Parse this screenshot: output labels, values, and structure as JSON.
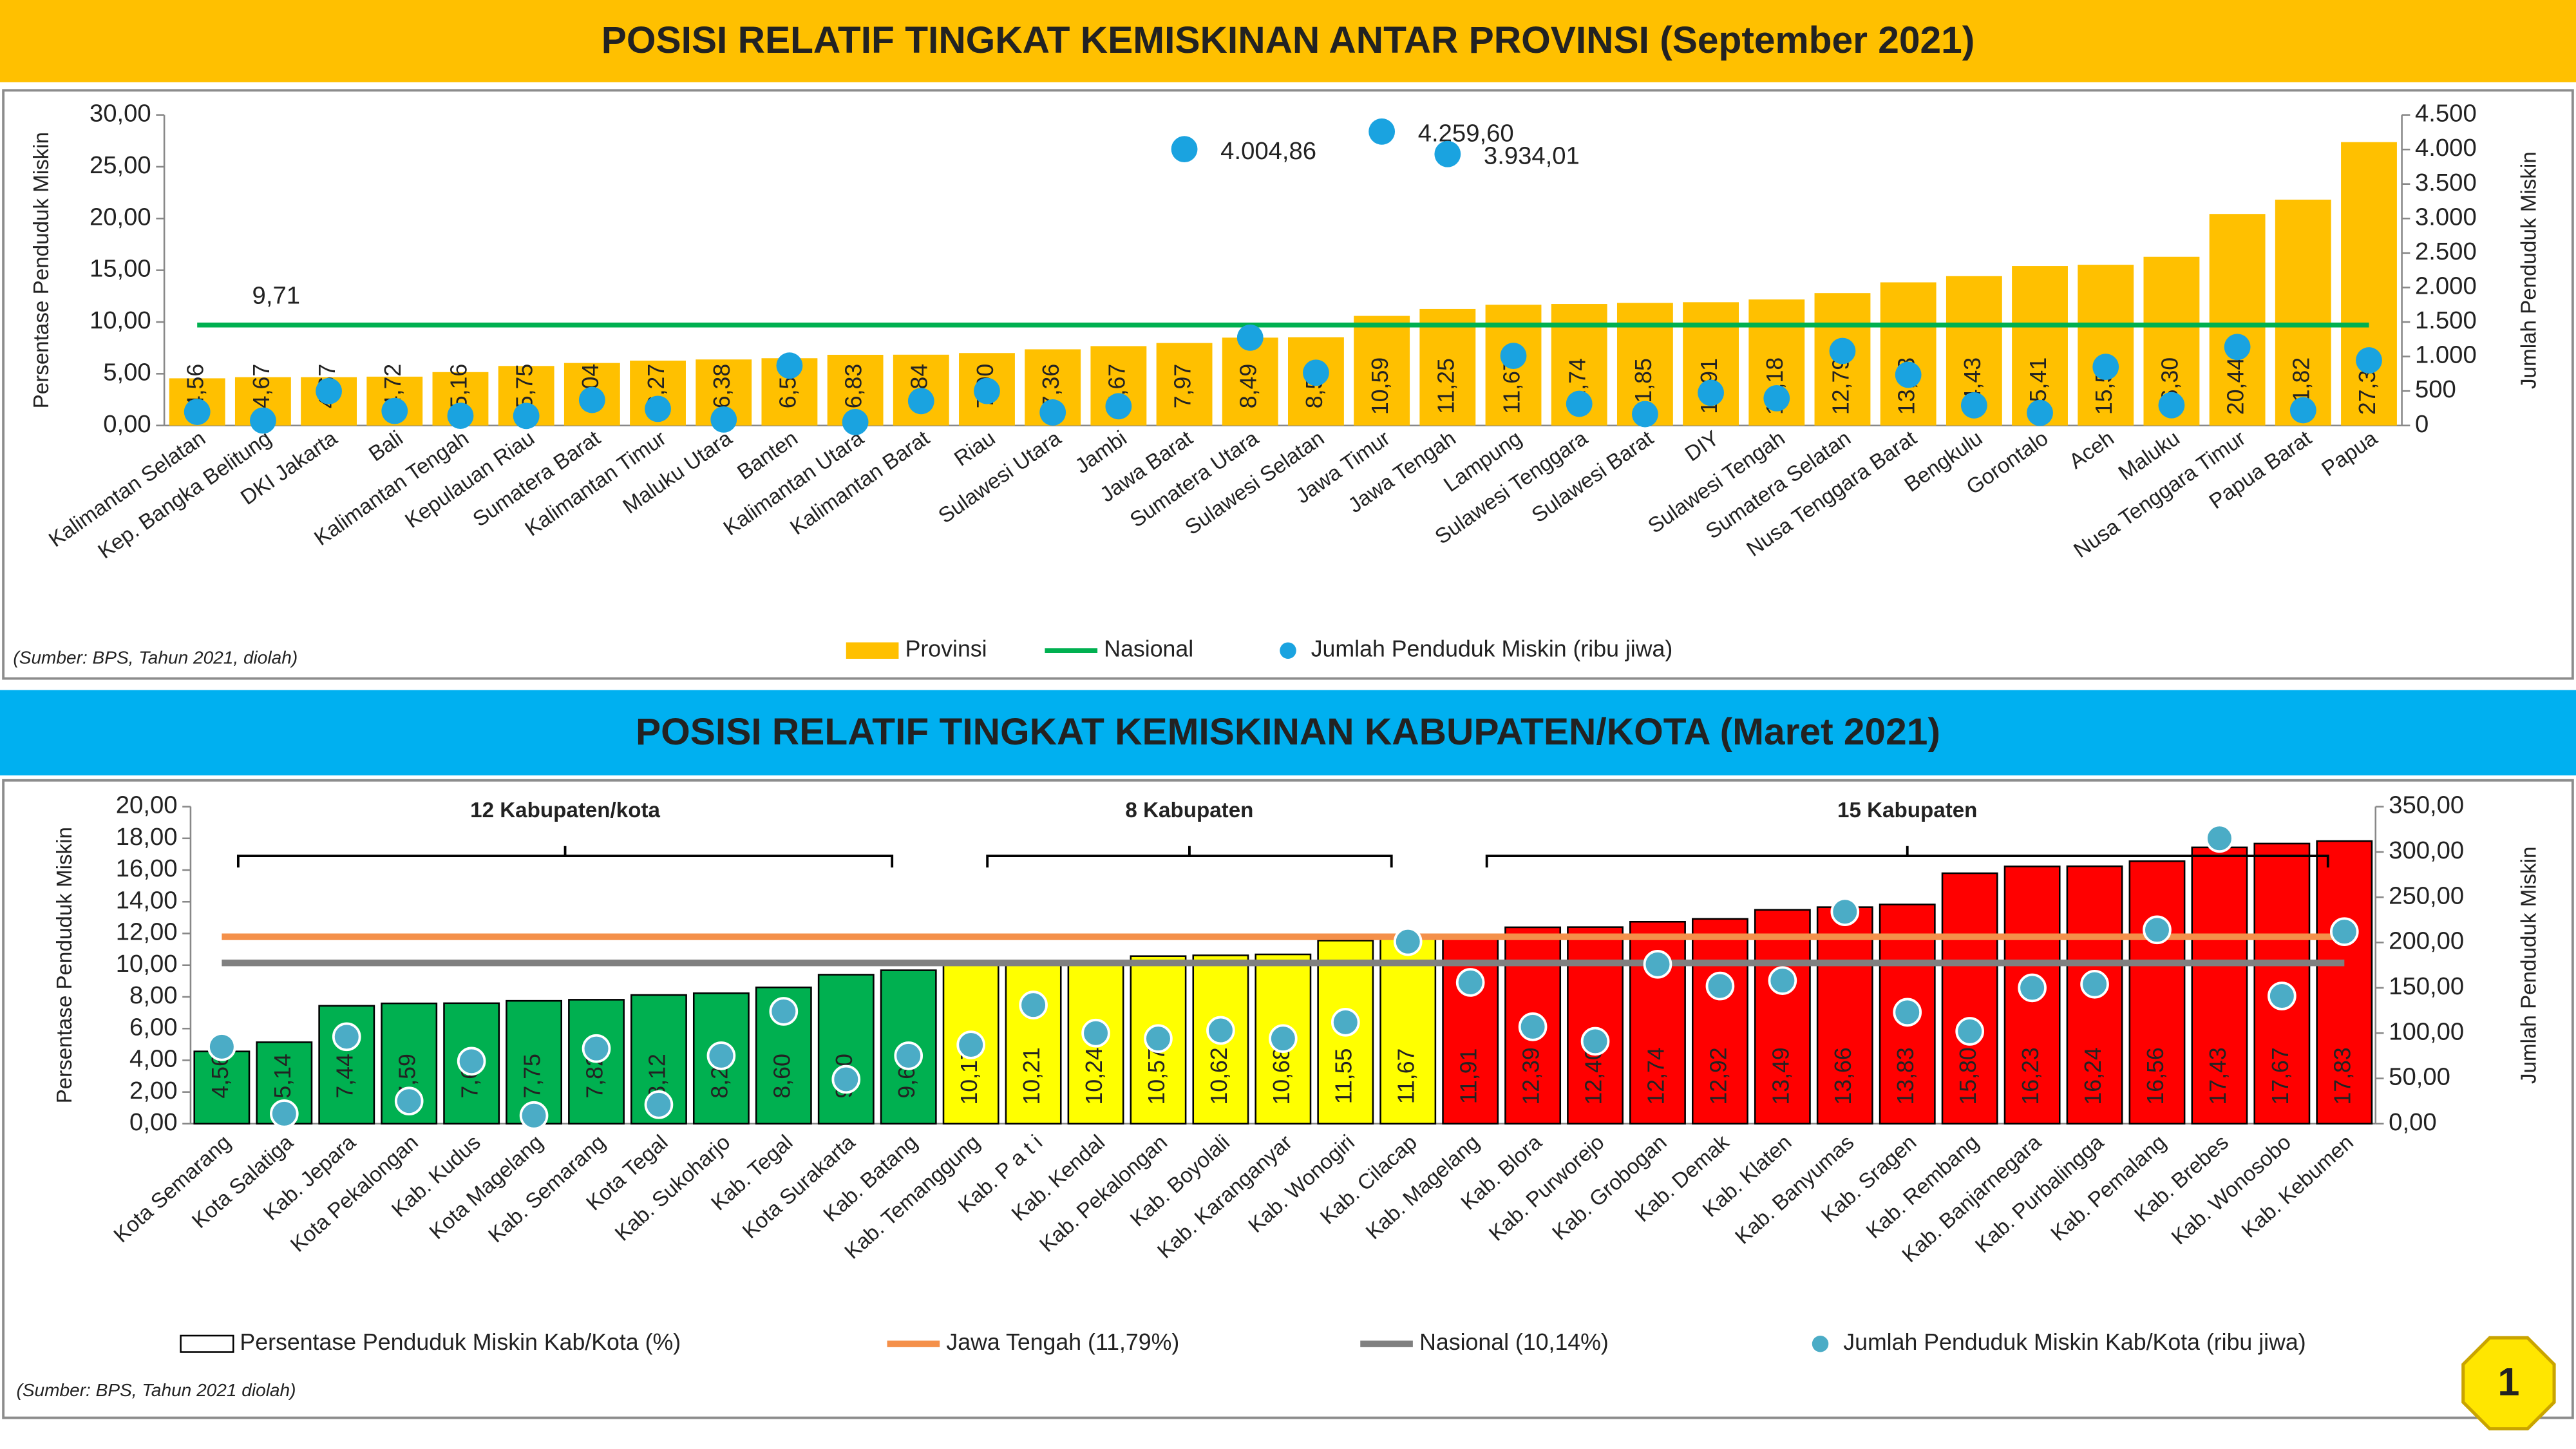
{
  "page_number": "1",
  "chart_data": [
    {
      "type": "bar",
      "title": "POSISI RELATIF TINGKAT KEMISKINAN ANTAR PROVINSI (September 2021)",
      "title_background": "#ffc000",
      "source": "(Sumber: BPS, Tahun 2021, diolah)",
      "y_label": "Persentase Penduduk Miskin",
      "y2_label": "Jumlah Penduduk Miskin",
      "categories": [
        "Kalimantan Selatan",
        "Kep. Bangka Belitung",
        "DKI Jakarta",
        "Bali",
        "Kalimantan Tengah",
        "Kepulauan Riau",
        "Sumatera Barat",
        "Kalimantan Timur",
        "Maluku Utara",
        "Banten",
        "Kalimantan Utara",
        "Kalimantan Barat",
        "Riau",
        "Sulawesi Utara",
        "Jambi",
        "Jawa Barat",
        "Sumatera Utara",
        "Sulawesi Selatan",
        "Jawa Timur",
        "Jawa Tengah",
        "Lampung",
        "Sulawesi Tenggara",
        "Sulawesi Barat",
        "DIY",
        "Sulawesi Tengah",
        "Sumatera Selatan",
        "Nusa Tenggara Barat",
        "Bengkulu",
        "Gorontalo",
        "Aceh",
        "Maluku",
        "Nusa Tenggara Timur",
        "Papua Barat",
        "Papua"
      ],
      "series": [
        {
          "name": "Provinsi",
          "type": "bar",
          "color": "#ffc000",
          "values": [
            4.56,
            4.67,
            4.67,
            4.72,
            5.16,
            5.75,
            6.04,
            6.27,
            6.38,
            6.5,
            6.83,
            6.84,
            7.0,
            7.36,
            7.67,
            7.97,
            8.49,
            8.53,
            10.59,
            11.25,
            11.67,
            11.74,
            11.85,
            11.91,
            12.18,
            12.79,
            13.83,
            14.43,
            15.41,
            15.53,
            16.3,
            20.44,
            21.82,
            27.38
          ],
          "value_labels": [
            "4,56",
            "4,67",
            "4,67",
            "4,72",
            "5,16",
            "5,75",
            "6,04",
            "6,27",
            "6,38",
            "6,50",
            "6,83",
            "6,84",
            "7,00",
            "7,36",
            "7,67",
            "7,97",
            "8,49",
            "8,53",
            "10,59",
            "11,25",
            "11,67",
            "11,74",
            "11,85",
            "11,91",
            "12,18",
            "12,79",
            "13,83",
            "14,43",
            "15,41",
            "15,53",
            "16,30",
            "20,44",
            "21,82",
            "27,38"
          ]
        },
        {
          "name": "Jumlah Penduduk Miskin (ribu jiwa)",
          "type": "scatter",
          "axis": "y2",
          "color": "#1aa3e0",
          "values": [
            197,
            72,
            498,
            211,
            141,
            139,
            370,
            241,
            87,
            868,
            50,
            354,
            500,
            189,
            279,
            4004.86,
            1273,
            765,
            4259.6,
            3934.01,
            1009,
            314,
            165,
            474,
            395,
            1080,
            735,
            292,
            183,
            850,
            294,
            1138,
            222,
            944
          ],
          "value_labels": [
            null,
            null,
            null,
            null,
            null,
            null,
            null,
            null,
            null,
            null,
            null,
            null,
            null,
            null,
            null,
            "4.004,86",
            null,
            null,
            "4.259,60",
            "3.934,01",
            null,
            null,
            null,
            null,
            null,
            null,
            null,
            null,
            null,
            null,
            null,
            null,
            null,
            null
          ]
        }
      ],
      "reference_lines": [
        {
          "name": "Nasional",
          "value": 9.71,
          "value_label": "9,71",
          "color": "#00b050"
        }
      ],
      "ylim": [
        0,
        30
      ],
      "yticks": [
        {
          "value": 0,
          "label": "0,00"
        },
        {
          "value": 5,
          "label": "5,00"
        },
        {
          "value": 10,
          "label": "10,00"
        },
        {
          "value": 15,
          "label": "15,00"
        },
        {
          "value": 20,
          "label": "20,00"
        },
        {
          "value": 25,
          "label": "25,00"
        },
        {
          "value": 30,
          "label": "30,00"
        }
      ],
      "y2lim": [
        0,
        4500
      ],
      "y2ticks": [
        0,
        500,
        {
          "value": 1000,
          "label": "1.000"
        },
        {
          "value": 1500,
          "label": "1.500"
        },
        {
          "value": 2000,
          "label": "2.000"
        },
        {
          "value": 2500,
          "label": "2.500"
        },
        {
          "value": 3000,
          "label": "3.000"
        },
        {
          "value": 3500,
          "label": "3.500"
        },
        {
          "value": 4000,
          "label": "4.000"
        },
        {
          "value": 4500,
          "label": "4.500"
        }
      ]
    },
    {
      "type": "bar",
      "title": "POSISI RELATIF TINGKAT KEMISKINAN KABUPATEN/KOTA (Maret 2021)",
      "title_background": "#00b0f0",
      "source": "(Sumber: BPS, Tahun 2021 diolah)",
      "y_label": "Persentase Penduduk Miskin",
      "y2_label": "Jumlah Penduduk Miskin",
      "categories": [
        "Kota Semarang",
        "Kota Salatiga",
        "Kab. Jepara",
        "Kota Pekalongan",
        "Kab. Kudus",
        "Kota Magelang",
        "Kab. Semarang",
        "Kota Tegal",
        "Kab. Sukoharjo",
        "Kab. Tegal",
        "Kota Surakarta",
        "Kab. Batang",
        "Kab. Temanggung",
        "Kab. P a t i",
        "Kab. Kendal",
        "Kab. Pekalongan",
        "Kab. Boyolali",
        "Kab. Karanganyar",
        "Kab. Wonogiri",
        "Kab. Cilacap",
        "Kab. Magelang",
        "Kab. Blora",
        "Kab. Purworejo",
        "Kab. Grobogan",
        "Kab. Demak",
        "Kab. Klaten",
        "Kab. Banyumas",
        "Kab. Sragen",
        "Kab. Rembang",
        "Kab. Banjarnegara",
        "Kab. Purbalingga",
        "Kab. Pemalang",
        "Kab. Brebes",
        "Kab. Wonosobo",
        "Kab. Kebumen"
      ],
      "series": [
        {
          "name": "Persentase Penduduk Miskin Kab/Kota (%)",
          "type": "bar",
          "color": "#ffffff",
          "colors": [
            "#00b050",
            "#00b050",
            "#00b050",
            "#00b050",
            "#00b050",
            "#00b050",
            "#00b050",
            "#00b050",
            "#00b050",
            "#00b050",
            "#00b050",
            "#00b050",
            "#ffff00",
            "#ffff00",
            "#ffff00",
            "#ffff00",
            "#ffff00",
            "#ffff00",
            "#ffff00",
            "#ffff00",
            "#ff0000",
            "#ff0000",
            "#ff0000",
            "#ff0000",
            "#ff0000",
            "#ff0000",
            "#ff0000",
            "#ff0000",
            "#ff0000",
            "#ff0000",
            "#ff0000",
            "#ff0000",
            "#ff0000",
            "#ff0000",
            "#ff0000"
          ],
          "values": [
            4.56,
            5.14,
            7.44,
            7.59,
            7.6,
            7.75,
            7.82,
            8.12,
            8.23,
            8.6,
            9.4,
            9.68,
            10.17,
            10.21,
            10.24,
            10.57,
            10.62,
            10.68,
            11.55,
            11.67,
            11.91,
            12.39,
            12.4,
            12.74,
            12.92,
            13.49,
            13.66,
            13.83,
            15.8,
            16.23,
            16.24,
            16.56,
            17.43,
            17.67,
            17.83
          ],
          "value_labels": [
            "4,56",
            "5,14",
            "7,44",
            "7,59",
            "7,60",
            "7,75",
            "7,82",
            "8,12",
            "8,23",
            "8,60",
            "9,40",
            "9,68",
            "10,17",
            "10,21",
            "10,24",
            "10,57",
            "10,62",
            "10,68",
            "11,55",
            "11,67",
            "11,91",
            "12,39",
            "12,40",
            "12,74",
            "12,92",
            "13,49",
            "13,66",
            "13,83",
            "15,80",
            "16,23",
            "16,24",
            "16,56",
            "17,43",
            "17,67",
            "17,83"
          ]
        },
        {
          "name": "Jumlah Penduduk Miskin Kab/Kota (ribu jiwa)",
          "type": "scatter",
          "axis": "y2",
          "color": "#4bacc6",
          "values": [
            85,
            11,
            96,
            25,
            69,
            9,
            83,
            21,
            75,
            124,
            49,
            75,
            87,
            131,
            100,
            94,
            103,
            94,
            112,
            201,
            156,
            107,
            91,
            176,
            152,
            158,
            234,
            123,
            102,
            150,
            154,
            214,
            315,
            141,
            212
          ]
        }
      ],
      "reference_lines": [
        {
          "name": "Jawa Tengah (11,79%)",
          "value": 11.79,
          "color": "#f4904a"
        },
        {
          "name": "Nasional (10,14%)",
          "value": 10.14,
          "color": "#808080"
        }
      ],
      "groups": [
        {
          "label": "12 Kabupaten/kota",
          "color": "#00b050"
        },
        {
          "label": "8 Kabupaten",
          "color": "#404040"
        },
        {
          "label": "15 Kabupaten",
          "color": "#ff0000"
        }
      ],
      "ylim": [
        0,
        20
      ],
      "yticks": [
        {
          "value": 0,
          "label": "0,00"
        },
        {
          "value": 2,
          "label": "2,00"
        },
        {
          "value": 4,
          "label": "4,00"
        },
        {
          "value": 6,
          "label": "6,00"
        },
        {
          "value": 8,
          "label": "8,00"
        },
        {
          "value": 10,
          "label": "10,00"
        },
        {
          "value": 12,
          "label": "12,00"
        },
        {
          "value": 14,
          "label": "14,00"
        },
        {
          "value": 16,
          "label": "16,00"
        },
        {
          "value": 18,
          "label": "18,00"
        },
        {
          "value": 20,
          "label": "20,00"
        }
      ],
      "y2lim": [
        0,
        350
      ],
      "y2ticks": [
        {
          "value": 0,
          "label": "0,00"
        },
        {
          "value": 50,
          "label": "50,00"
        },
        {
          "value": 100,
          "label": "100,00"
        },
        {
          "value": 150,
          "label": "150,00"
        },
        {
          "value": 200,
          "label": "200,00"
        },
        {
          "value": 250,
          "label": "250,00"
        },
        {
          "value": 300,
          "label": "300,00"
        },
        {
          "value": 350,
          "label": "350,00"
        }
      ]
    }
  ]
}
